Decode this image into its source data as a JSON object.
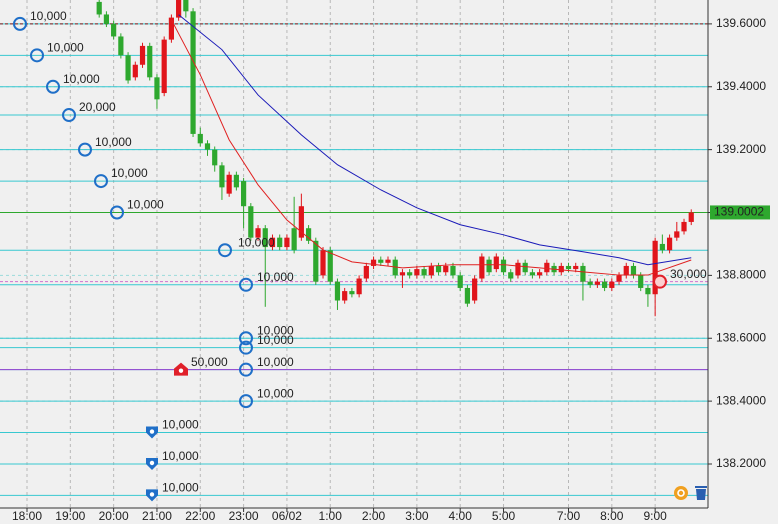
{
  "chart_data": {
    "type": "candlestick",
    "categories": [
      "18:00",
      null,
      null,
      null,
      null,
      null,
      "19:00",
      null,
      null,
      null,
      null,
      null,
      "20:00",
      null,
      null,
      null,
      null,
      null,
      "21:00",
      null,
      null,
      null,
      null,
      null,
      "22:00",
      null,
      null,
      null,
      null,
      null,
      "23:00",
      null,
      null,
      null,
      null,
      null,
      "06/02",
      null,
      null,
      null,
      null,
      null,
      "1:00",
      null,
      null,
      null,
      null,
      null,
      "2:00",
      null,
      null,
      null,
      null,
      null,
      "3:00",
      null,
      null,
      null,
      null,
      null,
      "4:00",
      null,
      null,
      null,
      null,
      null,
      "5:00",
      null,
      null,
      null,
      null,
      null,
      null,
      null,
      null,
      "7:00",
      null,
      null,
      null,
      null,
      null,
      "8:00",
      null,
      null,
      null,
      null,
      null,
      "9:00",
      null,
      null,
      null,
      null,
      null
    ],
    "open": [
      null,
      null,
      null,
      null,
      null,
      null,
      null,
      null,
      null,
      null,
      139.67,
      139.63,
      139.6,
      139.56,
      139.5,
      139.43,
      139.47,
      139.53,
      139.43,
      139.38,
      139.55,
      139.62,
      139.7,
      139.64,
      139.25,
      139.22,
      139.2,
      139.15,
      139.06,
      139.12,
      139.1,
      139.02,
      138.92,
      138.95,
      138.89,
      138.92,
      138.89,
      138.95,
      138.92,
      138.95,
      138.91,
      138.8,
      138.88,
      138.78,
      138.72,
      138.75,
      138.74,
      138.79,
      138.83,
      138.85,
      138.84,
      138.85,
      138.8,
      138.81,
      138.8,
      138.82,
      138.8,
      138.83,
      138.81,
      138.83,
      138.8,
      138.76,
      138.72,
      138.79,
      138.85,
      138.82,
      138.85,
      138.81,
      138.8,
      138.84,
      138.81,
      138.8,
      138.81,
      138.83,
      138.81,
      138.83,
      138.82,
      138.83,
      138.78,
      138.77,
      138.78,
      138.76,
      138.78,
      138.8,
      138.83,
      138.8,
      138.76,
      138.74,
      138.9,
      138.88,
      138.92,
      138.94,
      138.97
    ],
    "high": [
      null,
      null,
      null,
      null,
      null,
      null,
      null,
      null,
      null,
      null,
      139.69,
      139.64,
      139.61,
      139.57,
      139.51,
      139.48,
      139.54,
      139.54,
      139.44,
      139.56,
      139.63,
      139.72,
      139.71,
      139.65,
      139.27,
      139.23,
      139.21,
      139.16,
      139.13,
      139.13,
      139.11,
      139.03,
      138.96,
      138.96,
      138.93,
      138.93,
      138.93,
      139.05,
      139.06,
      138.96,
      138.92,
      138.89,
      138.89,
      138.79,
      138.76,
      138.76,
      138.8,
      138.84,
      138.86,
      138.86,
      138.86,
      138.86,
      138.82,
      138.82,
      138.83,
      138.83,
      138.84,
      138.84,
      138.84,
      138.84,
      138.81,
      138.77,
      138.8,
      138.87,
      138.86,
      138.87,
      138.86,
      138.82,
      138.85,
      138.85,
      138.82,
      138.82,
      138.85,
      138.84,
      138.84,
      138.84,
      138.84,
      138.84,
      138.79,
      138.79,
      138.79,
      138.79,
      138.81,
      138.84,
      138.84,
      138.81,
      138.77,
      138.92,
      138.93,
      138.93,
      138.97,
      138.98,
      139.01
    ],
    "low": [
      null,
      null,
      null,
      null,
      null,
      null,
      null,
      null,
      null,
      null,
      139.62,
      139.59,
      139.55,
      139.49,
      139.41,
      139.42,
      139.46,
      139.42,
      139.33,
      139.37,
      139.54,
      139.61,
      139.62,
      139.24,
      139.21,
      139.18,
      139.13,
      139.04,
      139.05,
      139.07,
      138.95,
      138.91,
      138.91,
      138.7,
      138.88,
      138.88,
      138.88,
      138.87,
      138.91,
      138.9,
      138.77,
      138.79,
      138.77,
      138.69,
      138.71,
      138.73,
      138.73,
      138.78,
      138.82,
      138.83,
      138.83,
      138.79,
      138.76,
      138.79,
      138.79,
      138.79,
      138.79,
      138.8,
      138.8,
      138.79,
      138.75,
      138.7,
      138.71,
      138.78,
      138.8,
      138.81,
      138.8,
      138.78,
      138.79,
      138.8,
      138.79,
      138.79,
      138.8,
      138.8,
      138.8,
      138.81,
      138.81,
      138.72,
      138.76,
      138.76,
      138.75,
      138.75,
      138.77,
      138.79,
      138.79,
      138.75,
      138.7,
      138.67,
      138.87,
      138.87,
      138.91,
      138.93,
      138.96
    ],
    "close": [
      null,
      null,
      null,
      null,
      null,
      null,
      null,
      null,
      null,
      null,
      139.63,
      139.6,
      139.56,
      139.5,
      139.42,
      139.47,
      139.53,
      139.43,
      139.36,
      139.55,
      139.62,
      139.7,
      139.64,
      139.25,
      139.22,
      139.2,
      139.15,
      139.08,
      139.12,
      139.08,
      139.02,
      138.92,
      138.95,
      138.89,
      138.92,
      138.89,
      138.92,
      138.88,
      139.02,
      138.91,
      138.78,
      138.88,
      138.78,
      138.72,
      138.75,
      138.74,
      138.79,
      138.83,
      138.85,
      138.84,
      138.85,
      138.8,
      138.81,
      138.8,
      138.82,
      138.8,
      138.83,
      138.81,
      138.83,
      138.8,
      138.76,
      138.71,
      138.79,
      138.86,
      138.81,
      138.86,
      138.81,
      138.79,
      138.84,
      138.81,
      138.8,
      138.81,
      138.84,
      138.81,
      138.83,
      138.82,
      138.83,
      138.78,
      138.77,
      138.78,
      138.76,
      138.78,
      138.8,
      138.83,
      138.8,
      138.76,
      138.74,
      138.91,
      138.88,
      138.92,
      138.94,
      138.97,
      139.0002
    ],
    "up_color": "#e0151b",
    "down_color": "#2ea82e",
    "lines": [
      {
        "color": "#1a1ab8",
        "x": [
          21,
          27,
          32,
          38,
          43,
          49,
          54,
          60,
          66,
          71,
          77,
          82,
          86,
          92
        ],
        "values": [
          139.629,
          139.518,
          139.374,
          139.247,
          139.152,
          139.072,
          139.015,
          138.961,
          138.929,
          138.897,
          138.875,
          138.856,
          138.834,
          138.856
        ]
      },
      {
        "color": "#e02020",
        "x": [
          20,
          24,
          28,
          32,
          36,
          41,
          45,
          52,
          59,
          66,
          71,
          77,
          82,
          86,
          92
        ],
        "values": [
          139.613,
          139.438,
          139.231,
          139.088,
          138.976,
          138.881,
          138.843,
          138.824,
          138.834,
          138.834,
          138.824,
          138.811,
          138.801,
          138.801,
          138.849
        ]
      }
    ],
    "ylim": [
      138.06,
      139.676
    ],
    "yticks": [
      {
        "value": 139.6,
        "label": "139.6000"
      },
      {
        "value": 139.4,
        "label": "139.4000"
      },
      {
        "value": 139.2,
        "label": "139.2000"
      },
      {
        "value": 139.0,
        "label": "139.0000"
      },
      {
        "value": 138.8,
        "label": "138.8000"
      },
      {
        "value": 138.6,
        "label": "138.6000"
      },
      {
        "value": 138.4,
        "label": "138.4000"
      },
      {
        "value": 138.2,
        "label": "138.2000"
      }
    ],
    "current_price": {
      "value": 139.0002,
      "label": "139.0002",
      "color": "#2ea82e"
    },
    "levels": [
      {
        "value": 139.6,
        "color": "#8b1a1a",
        "dash": true
      },
      {
        "value": 138.5,
        "color": "#9b3fd0",
        "dash": false
      },
      {
        "value": 138.78,
        "color": "#d070d0",
        "dash": true
      }
    ],
    "orders": [
      {
        "price": 139.6,
        "label": "10,000",
        "shape": "circle",
        "color": "#1f6fc8"
      },
      {
        "price": 139.5,
        "label": "10,000",
        "shape": "circle",
        "color": "#1f6fc8"
      },
      {
        "price": 139.4,
        "label": "10,000",
        "shape": "circle",
        "color": "#1f6fc8"
      },
      {
        "price": 139.31,
        "label": "20,000",
        "shape": "circle",
        "color": "#1f6fc8"
      },
      {
        "price": 139.2,
        "label": "10,000",
        "shape": "circle",
        "color": "#1f6fc8"
      },
      {
        "price": 139.1,
        "label": "10,000",
        "shape": "circle",
        "color": "#1f6fc8"
      },
      {
        "price": 139.0,
        "label": "10,000",
        "shape": "circle",
        "color": "#1f6fc8"
      },
      {
        "price": 138.88,
        "label": "10,000",
        "shape": "circle",
        "color": "#1f6fc8"
      },
      {
        "price": 138.77,
        "label": "10,000",
        "shape": "circle",
        "color": "#1f6fc8"
      },
      {
        "price": 138.6,
        "label": "10,000",
        "shape": "circle",
        "color": "#1f6fc8"
      },
      {
        "price": 138.57,
        "label": "10,000",
        "shape": "circle",
        "color": "#1f6fc8"
      },
      {
        "price": 138.5,
        "label": "10,000",
        "shape": "circle",
        "color": "#1f6fc8"
      },
      {
        "price": 138.4,
        "label": "10,000",
        "shape": "circle",
        "color": "#1f6fc8"
      },
      {
        "price": 138.3,
        "label": "10,000",
        "shape": "shield",
        "color": "#1f6fc8"
      },
      {
        "price": 138.2,
        "label": "10,000",
        "shape": "shield",
        "color": "#1f6fc8"
      },
      {
        "price": 138.1,
        "label": "10,000",
        "shape": "shield",
        "color": "#1f6fc8"
      },
      {
        "price": 138.5,
        "label": "50,000",
        "shape": "house",
        "color": "#e0202a"
      },
      {
        "price": 138.78,
        "label": "30,000",
        "shape": "circle",
        "color": "#e0202a"
      }
    ],
    "grid": true
  }
}
